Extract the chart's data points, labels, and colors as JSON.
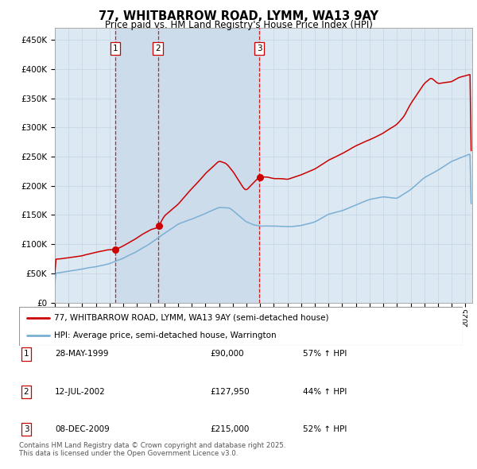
{
  "title": "77, WHITBARROW ROAD, LYMM, WA13 9AY",
  "subtitle": "Price paid vs. HM Land Registry's House Price Index (HPI)",
  "legend_line1": "77, WHITBARROW ROAD, LYMM, WA13 9AY (semi-detached house)",
  "legend_line2": "HPI: Average price, semi-detached house, Warrington",
  "purchases": [
    {
      "num": 1,
      "date": "28-MAY-1999",
      "price": 90000,
      "hpi_pct": "57% ↑ HPI",
      "x_year": 1999.41
    },
    {
      "num": 2,
      "date": "12-JUL-2002",
      "price": 127950,
      "hpi_pct": "44% ↑ HPI",
      "x_year": 2002.53
    },
    {
      "num": 3,
      "date": "08-DEC-2009",
      "price": 215000,
      "hpi_pct": "52% ↑ HPI",
      "x_year": 2009.93
    }
  ],
  "red_line_color": "#cc0000",
  "blue_line_color": "#7aafd4",
  "vline_color": "#cc0000",
  "shade_color": "#d8e8f5",
  "grid_color": "#c8d8e8",
  "plot_bg_color": "#dce8f2",
  "ylim": [
    0,
    470000
  ],
  "xlim_start": 1995.0,
  "xlim_end": 2025.5,
  "footer": "Contains HM Land Registry data © Crown copyright and database right 2025.\nThis data is licensed under the Open Government Licence v3.0."
}
